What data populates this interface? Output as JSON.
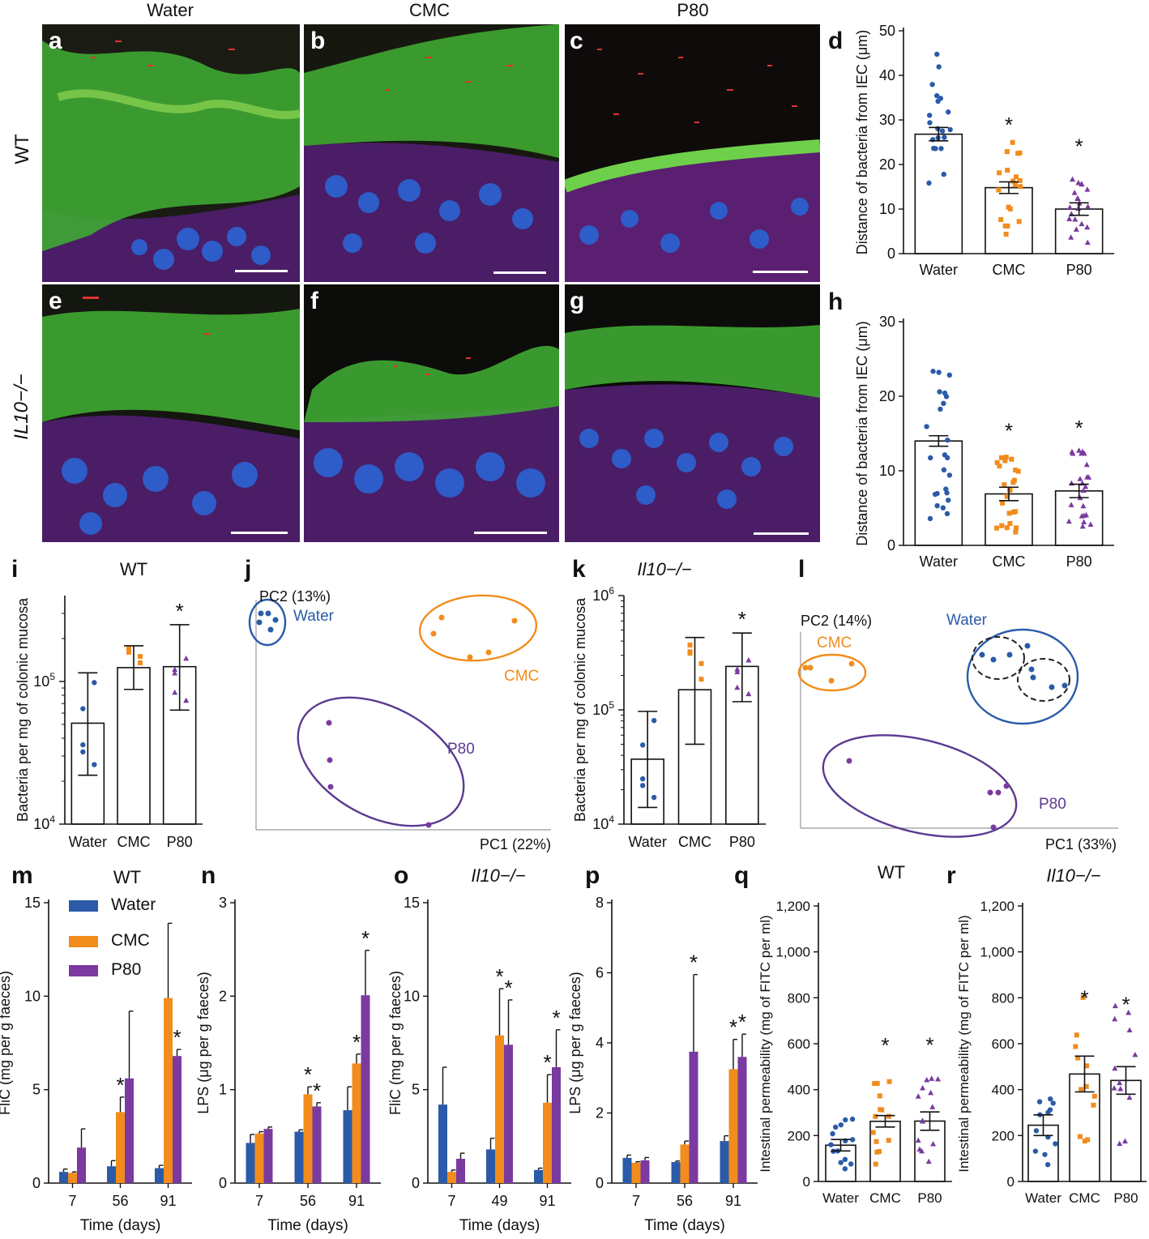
{
  "columns": [
    "Water",
    "CMC",
    "P80"
  ],
  "rows": [
    "WT",
    "IL10−/−"
  ],
  "colors": {
    "water": "#2b5ba8",
    "cmc": "#f28c1c",
    "p80": "#7a3aa0"
  },
  "micrographs": [
    {
      "label": "a"
    },
    {
      "label": "b"
    },
    {
      "label": "c"
    },
    {
      "label": "e"
    },
    {
      "label": "f"
    },
    {
      "label": "g"
    }
  ],
  "panel_d": {
    "label": "d"
  },
  "panel_h": {
    "label": "h"
  },
  "panel_i": {
    "label": "i",
    "title": "WT"
  },
  "panel_j": {
    "label": "j",
    "pc1": "PC1 (22%)",
    "pc2": "PC2 (13%)",
    "groups": [
      "Water",
      "CMC",
      "P80"
    ]
  },
  "panel_k": {
    "label": "k",
    "title": "Il10−/−"
  },
  "panel_l": {
    "label": "l",
    "pc1": "PC1 (33%)",
    "pc2": "PC2 (14%)",
    "groups": [
      "Water",
      "CMC",
      "P80"
    ]
  },
  "panel_m": {
    "label": "m",
    "title": "WT"
  },
  "panel_n": {
    "label": "n"
  },
  "panel_o": {
    "label": "o",
    "title": "Il10−/−"
  },
  "panel_p": {
    "label": "p"
  },
  "panel_q": {
    "label": "q",
    "title": "WT"
  },
  "panel_r": {
    "label": "r",
    "title": "Il10−/−"
  },
  "legend": [
    "Water",
    "CMC",
    "P80"
  ],
  "chart_data": [
    {
      "id": "d",
      "type": "bar",
      "categories": [
        "Water",
        "CMC",
        "P80"
      ],
      "values": [
        26.8,
        14.8,
        10.0
      ],
      "sem": [
        1.5,
        1.3,
        1.4
      ],
      "ylabel": "Distance of bacteria from IEC (μm)",
      "ylim": [
        0,
        50
      ],
      "yticks": [
        0,
        10,
        20,
        30,
        40,
        50
      ],
      "significant": [
        false,
        true,
        true
      ]
    },
    {
      "id": "h",
      "type": "bar",
      "categories": [
        "Water",
        "CMC",
        "P80"
      ],
      "values": [
        14.0,
        6.9,
        7.3
      ],
      "sem": [
        0.7,
        0.9,
        0.9
      ],
      "ylabel": "Distance of bacteria from IEC (μm)",
      "ylim": [
        0,
        30
      ],
      "yticks": [
        0,
        10,
        20,
        30
      ],
      "significant": [
        false,
        true,
        true
      ]
    },
    {
      "id": "i",
      "type": "bar",
      "scale": "log",
      "categories": [
        "Water",
        "CMC",
        "P80"
      ],
      "values": [
        51000,
        125000,
        127000
      ],
      "err_low": [
        22000,
        88000,
        63000
      ],
      "err_high": [
        115000,
        178000,
        250000
      ],
      "ylabel": "Bacteria per mg of colonic mucosa",
      "ylim": [
        10000,
        400000
      ],
      "yticks": [
        "10^4",
        "10^5"
      ],
      "significant": [
        false,
        false,
        true
      ]
    },
    {
      "id": "k",
      "type": "bar",
      "scale": "log",
      "categories": [
        "Water",
        "CMC",
        "P80"
      ],
      "values": [
        37000,
        150000,
        240000
      ],
      "err_low": [
        14000,
        50000,
        118000
      ],
      "err_high": [
        97000,
        430000,
        470000
      ],
      "ylabel": "Bacteria per mg of colonic mucosa",
      "ylim": [
        10000,
        1000000
      ],
      "yticks": [
        "10^4",
        "10^5",
        "10^6"
      ],
      "significant": [
        false,
        false,
        true
      ]
    },
    {
      "id": "m",
      "type": "bar",
      "categories": [
        "7",
        "56",
        "91"
      ],
      "series": [
        {
          "name": "Water",
          "values": [
            0.6,
            0.9,
            0.8
          ],
          "err": [
            0.15,
            0.3,
            0.15
          ]
        },
        {
          "name": "CMC",
          "values": [
            0.55,
            3.8,
            9.9
          ],
          "err": [
            0.05,
            0.8,
            4.0
          ]
        },
        {
          "name": "P80",
          "values": [
            1.9,
            5.6,
            6.8
          ],
          "err": [
            1.0,
            3.6,
            0.35
          ]
        }
      ],
      "xlabel": "Time (days)",
      "ylabel": "FliC (mg per g faeces)",
      "ylim": [
        0,
        15
      ],
      "yticks": [
        0,
        5,
        10,
        15
      ],
      "stars": [
        [
          1,
          1
        ],
        [
          2,
          2
        ]
      ]
    },
    {
      "id": "n",
      "type": "bar",
      "categories": [
        "7",
        "56",
        "91"
      ],
      "series": [
        {
          "name": "Water",
          "values": [
            0.43,
            0.55,
            0.78
          ],
          "err": [
            0.09,
            0.02,
            0.25
          ]
        },
        {
          "name": "CMC",
          "values": [
            0.53,
            0.95,
            1.28
          ],
          "err": [
            0.02,
            0.08,
            0.1
          ]
        },
        {
          "name": "P80",
          "values": [
            0.58,
            0.82,
            2.01
          ],
          "err": [
            0.02,
            0.04,
            0.48
          ]
        }
      ],
      "xlabel": "Time (days)",
      "ylabel": "LPS (μg per g faeces)",
      "ylim": [
        0,
        3
      ],
      "yticks": [
        0,
        1,
        2,
        3
      ],
      "stars": [
        [
          1,
          1
        ],
        [
          1,
          2
        ],
        [
          2,
          1
        ],
        [
          2,
          2
        ]
      ]
    },
    {
      "id": "o",
      "type": "bar",
      "categories": [
        "7",
        "49",
        "91"
      ],
      "series": [
        {
          "name": "Water",
          "values": [
            4.2,
            1.8,
            0.7
          ],
          "err": [
            2.0,
            0.6,
            0.1
          ]
        },
        {
          "name": "CMC",
          "values": [
            0.6,
            7.9,
            4.3
          ],
          "err": [
            0.1,
            2.5,
            1.5
          ]
        },
        {
          "name": "P80",
          "values": [
            1.3,
            7.4,
            6.2
          ],
          "err": [
            0.3,
            2.4,
            2.0
          ]
        }
      ],
      "xlabel": "Time (days)",
      "ylabel": "FliC (mg per g faeces)",
      "ylim": [
        0,
        15
      ],
      "yticks": [
        0,
        5,
        10,
        15
      ],
      "stars": [
        [
          1,
          1
        ],
        [
          1,
          2
        ],
        [
          2,
          1
        ],
        [
          2,
          2
        ]
      ]
    },
    {
      "id": "p",
      "type": "bar",
      "categories": [
        "7",
        "56",
        "91"
      ],
      "series": [
        {
          "name": "Water",
          "values": [
            0.72,
            0.6,
            1.2
          ],
          "err": [
            0.08,
            0.03,
            0.15
          ]
        },
        {
          "name": "CMC",
          "values": [
            0.58,
            1.1,
            3.25
          ],
          "err": [
            0.03,
            0.1,
            0.85
          ]
        },
        {
          "name": "P80",
          "values": [
            0.65,
            3.75,
            3.6
          ],
          "err": [
            0.08,
            2.2,
            0.65
          ]
        }
      ],
      "xlabel": "Time (days)",
      "ylabel": "LPS (μg per g faeces)",
      "ylim": [
        0,
        8
      ],
      "yticks": [
        0,
        2,
        4,
        6,
        8
      ],
      "stars": [
        [
          1,
          2
        ],
        [
          2,
          1
        ],
        [
          2,
          2
        ]
      ]
    },
    {
      "id": "q",
      "type": "bar",
      "categories": [
        "Water",
        "CMC",
        "P80"
      ],
      "values": [
        158,
        262,
        263
      ],
      "sem": [
        25,
        25,
        40
      ],
      "ylabel": "Intestinal permeability (mg of FITC per ml)",
      "ylim": [
        0,
        1200
      ],
      "yticks": [
        "0",
        "200",
        "400",
        "600",
        "800",
        "1,000",
        "1,200"
      ],
      "significant": [
        false,
        true,
        true
      ]
    },
    {
      "id": "r",
      "type": "bar",
      "categories": [
        "Water",
        "CMC",
        "P80"
      ],
      "values": [
        245,
        468,
        440
      ],
      "sem": [
        45,
        78,
        60
      ],
      "ylabel": "Intestinal permeability (mg of FITC per ml)",
      "ylim": [
        0,
        1200
      ],
      "yticks": [
        "0",
        "200",
        "400",
        "600",
        "800",
        "1,000",
        "1,200"
      ],
      "significant": [
        false,
        true,
        true
      ]
    }
  ]
}
